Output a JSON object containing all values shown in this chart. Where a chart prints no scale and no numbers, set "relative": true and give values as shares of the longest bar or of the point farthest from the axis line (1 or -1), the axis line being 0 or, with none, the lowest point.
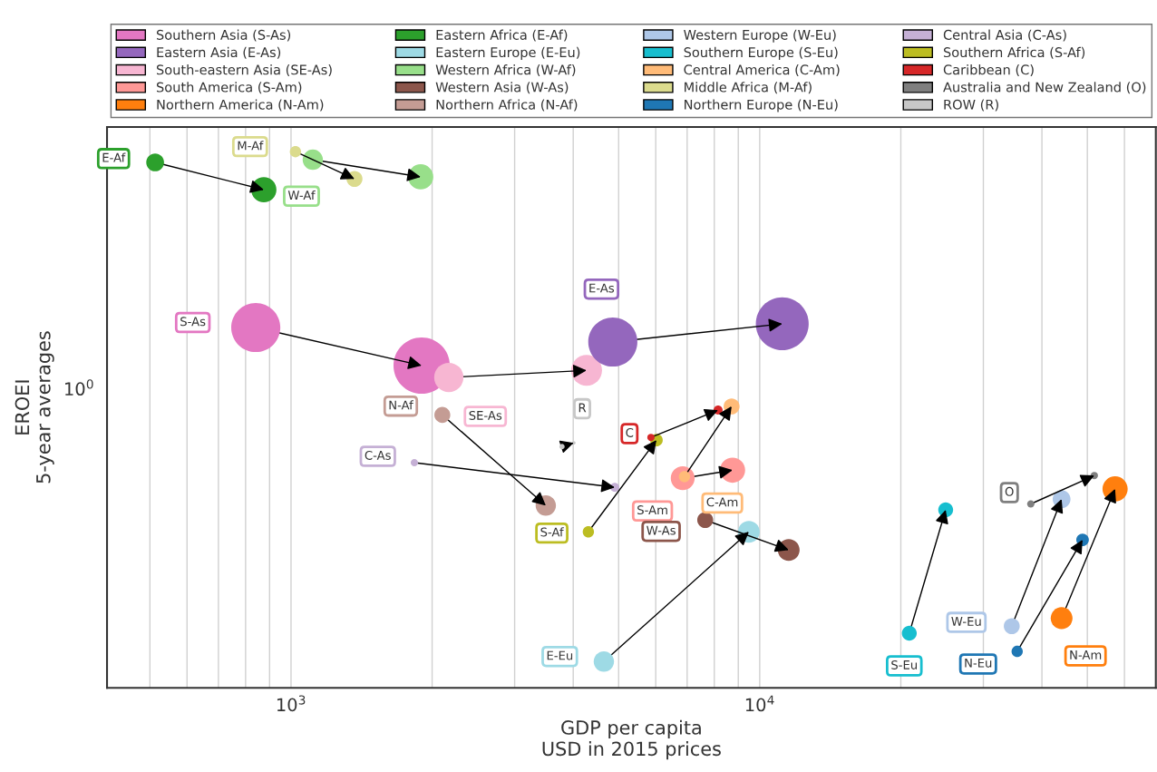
{
  "chart_data": {
    "type": "bubble",
    "xlabel": "GDP per capita\nUSD in 2015 prices",
    "ylabel": "EROEI\n5-year averages",
    "log": "x",
    "grid": "x",
    "legend": "top",
    "relative": true,
    "xlim": [
      405,
      70000
    ],
    "xticks": [
      {
        "value": 500,
        "label": null
      },
      {
        "value": 600,
        "label": null
      },
      {
        "value": 700,
        "label": null
      },
      {
        "value": 800,
        "label": null
      },
      {
        "value": 900,
        "label": null
      },
      {
        "value": 1000,
        "label": "10$^{3}$"
      },
      {
        "value": 2000,
        "label": null
      },
      {
        "value": 3000,
        "label": null
      },
      {
        "value": 4000,
        "label": null
      },
      {
        "value": 5000,
        "label": null
      },
      {
        "value": 6000,
        "label": null
      },
      {
        "value": 7000,
        "label": null
      },
      {
        "value": 8000,
        "label": null
      },
      {
        "value": 9000,
        "label": null
      },
      {
        "value": 10000,
        "label": "10$^{4}$"
      },
      {
        "value": 20000,
        "label": null
      },
      {
        "value": 30000,
        "label": null
      },
      {
        "value": 40000,
        "label": null
      },
      {
        "value": 50000,
        "label": null
      },
      {
        "value": 60000,
        "label": null
      }
    ],
    "series": [
      {
        "name": "Southern Asia (S-As)",
        "color": "#e377c2",
        "x": [
          841,
          1900
        ],
        "values": [
          0.672,
          0.601
        ],
        "sizes": [
          0.76,
          1
        ]
      },
      {
        "name": "Eastern Asia (E-As)",
        "color": "#9467bd",
        "x": [
          4859,
          11170
        ],
        "values": [
          0.645,
          0.679
        ],
        "sizes": [
          0.76,
          0.88
        ]
      },
      {
        "name": "South-eastern Asia (SE-As)",
        "color": "#f7b6d2",
        "x": [
          2171,
          4272
        ],
        "values": [
          0.579,
          0.592
        ],
        "sizes": [
          0.27,
          0.3
        ]
      },
      {
        "name": "South America (S-Am)",
        "color": "#ff9896",
        "x": [
          6850,
          8750
        ],
        "values": [
          0.391,
          0.406
        ],
        "sizes": [
          0.18,
          0.2
        ]
      },
      {
        "name": "Northern America (N-Am)",
        "color": "#ff7f0e",
        "x": [
          44060,
          57300
        ],
        "values": [
          0.13,
          0.371
        ],
        "sizes": [
          0.15,
          0.2
        ]
      },
      {
        "name": "Eastern Africa (E-Af)",
        "color": "#2ca02c",
        "x": [
          513,
          875
        ],
        "values": [
          0.98,
          0.929
        ],
        "sizes": [
          0.1,
          0.2
        ]
      },
      {
        "name": "Eastern Europe (E-Eu)",
        "color": "#9edae5",
        "x": [
          4650,
          9480
        ],
        "values": [
          0.049,
          0.291
        ],
        "sizes": [
          0.13,
          0.15
        ]
      },
      {
        "name": "Western Africa (W-Af)",
        "color": "#98df8a",
        "x": [
          1113,
          1891
        ],
        "values": [
          0.985,
          0.953
        ],
        "sizes": [
          0.13,
          0.2
        ]
      },
      {
        "name": "Western Asia (W-As)",
        "color": "#8c564b",
        "x": [
          7650,
          11530
        ],
        "values": [
          0.313,
          0.257
        ],
        "sizes": [
          0.08,
          0.15
        ]
      },
      {
        "name": "Northern Africa (N-Af)",
        "color": "#c49c94",
        "x": [
          2103,
          3496
        ],
        "values": [
          0.509,
          0.34
        ],
        "sizes": [
          0.08,
          0.13
        ]
      },
      {
        "name": "Western Europe (W-Eu)",
        "color": "#aec7e8",
        "x": [
          34490,
          44060
        ],
        "values": [
          0.115,
          0.352
        ],
        "sizes": [
          0.08,
          0.1
        ]
      },
      {
        "name": "Southern Europe (S-Eu)",
        "color": "#17becf",
        "x": [
          20850,
          24930
        ],
        "values": [
          0.102,
          0.332
        ],
        "sizes": [
          0.07,
          0.07
        ]
      },
      {
        "name": "Central America (C-Am)",
        "color": "#ffbb78",
        "x": [
          6910,
          8710
        ],
        "values": [
          0.394,
          0.525
        ],
        "sizes": [
          0.04,
          0.08
        ]
      },
      {
        "name": "Middle Africa (M-Af)",
        "color": "#dbdb8d",
        "x": [
          1022,
          1366
        ],
        "values": [
          1,
          0.949
        ],
        "sizes": [
          0.04,
          0.08
        ]
      },
      {
        "name": "Northern Europe (N-Eu)",
        "color": "#1f77b4",
        "x": [
          35420,
          48840
        ],
        "values": [
          0.068,
          0.276
        ],
        "sizes": [
          0.04,
          0.05
        ]
      },
      {
        "name": "Central Asia (C-As)",
        "color": "#c5b0d5",
        "x": [
          1833,
          4906
        ],
        "values": [
          0.42,
          0.374
        ],
        "sizes": [
          0.017,
          0.026
        ]
      },
      {
        "name": "Southern Africa (S-Af)",
        "color": "#bcbd22",
        "x": [
          4309,
          6021
        ],
        "values": [
          0.291,
          0.462
        ],
        "sizes": [
          0.04,
          0.05
        ]
      },
      {
        "name": "Caribbean (C)",
        "color": "#d62728",
        "x": [
          5860,
          8150
        ],
        "values": [
          0.467,
          0.518
        ],
        "sizes": [
          0.017,
          0.026
        ]
      },
      {
        "name": "Australia and New Zealand (O)",
        "color": "#7f7f7f",
        "x": [
          37870,
          51740
        ],
        "values": [
          0.343,
          0.396
        ],
        "sizes": [
          0.017,
          0.017
        ]
      },
      {
        "name": "ROW (R)",
        "color": "#c7c7c7",
        "x": [
          3786,
          4012
        ],
        "values": [
          0.45,
          0.457
        ],
        "sizes": [
          0.009,
          0.004
        ]
      }
    ],
    "annotations": [
      "S-As",
      "E-As",
      "SE-As",
      "S-Am",
      "N-Am",
      "E-Af",
      "E-Eu",
      "W-Af",
      "W-As",
      "N-Af",
      "W-Eu",
      "S-Eu",
      "C-Am",
      "M-Af",
      "N-Eu",
      "C-As",
      "S-Af",
      "C",
      "O",
      "R",
      "10$^{0}$"
    ]
  }
}
